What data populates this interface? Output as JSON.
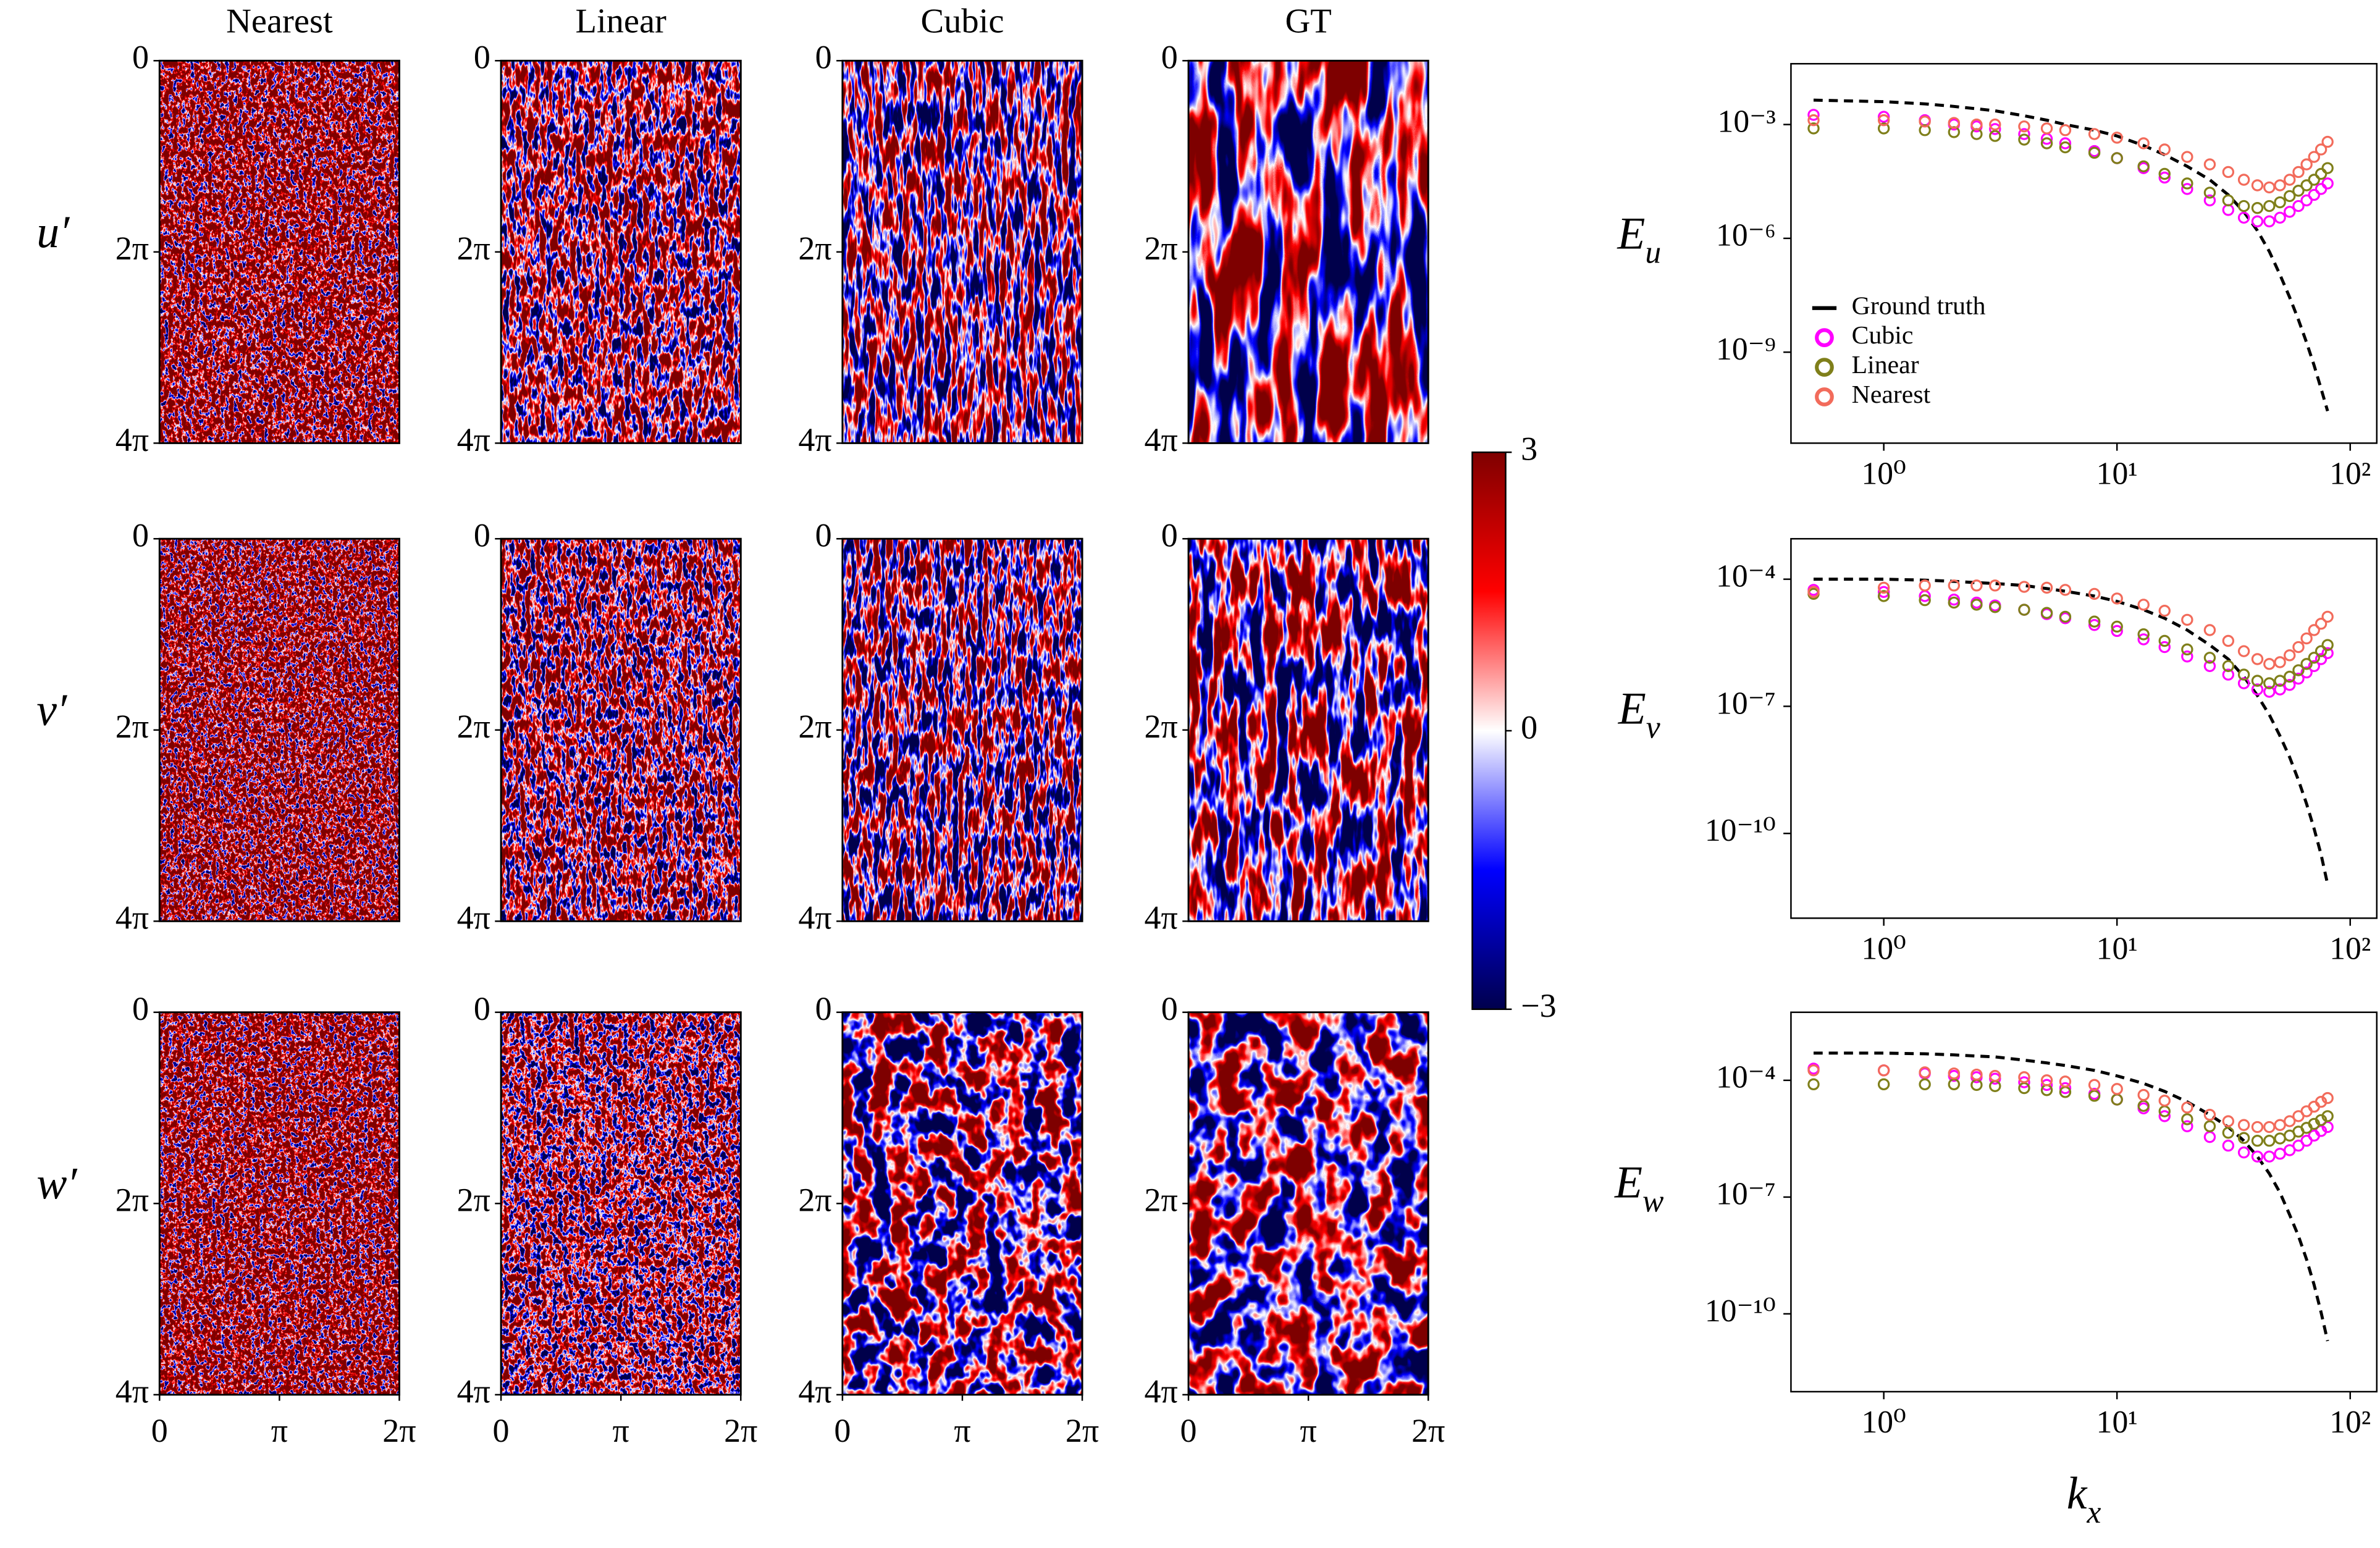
{
  "chart_data": [
    {
      "type": "heatmap",
      "columns": [
        "Nearest",
        "Linear",
        "Cubic",
        "GT"
      ],
      "rows": [
        "u′",
        "v′",
        "w′"
      ],
      "xlim": [
        0,
        6.2832
      ],
      "xticks": [
        0,
        {
          "value": 3.1416,
          "label": "π"
        },
        {
          "value": 6.2832,
          "label": "2π"
        }
      ],
      "ylim": [
        0,
        12.5664
      ],
      "yticks": [
        0,
        {
          "value": 6.2832,
          "label": "2π"
        },
        {
          "value": 12.5664,
          "label": "4π"
        }
      ],
      "y_inverted": true,
      "colormap": [
        "#00004c",
        "#0000ff",
        "#ffffff",
        "#ff0000",
        "#7f0000"
      ],
      "colorbar": {
        "lim": [
          -3,
          3
        ],
        "ticks": [
          {
            "value": -3,
            "label": "−3"
          },
          0,
          3
        ]
      }
    },
    {
      "type": "line",
      "xscale": "log",
      "yscale": "log",
      "ylabel": {
        "symbol": "E",
        "subscript": "u"
      },
      "x": [
        0.5,
        1,
        1.5,
        2,
        2.5,
        3,
        4,
        5,
        6,
        8,
        10,
        13,
        16,
        20,
        25,
        30,
        35,
        40,
        45,
        50,
        55,
        60,
        65,
        70,
        75,
        80
      ],
      "xlim": [
        0.4,
        130
      ],
      "xticks": [
        {
          "value": 1,
          "label": "10⁰"
        },
        {
          "value": 10,
          "label": "10¹"
        },
        {
          "value": 100,
          "label": "10²"
        }
      ],
      "ylim": [
        4e-12,
        0.04
      ],
      "yticks": [
        {
          "value": 0.001,
          "label": "10⁻³"
        },
        {
          "value": 1e-06,
          "label": "10⁻⁶"
        },
        {
          "value": 1e-09,
          "label": "10⁻⁹"
        }
      ],
      "legend": "lower left",
      "series": [
        {
          "name": "Ground truth",
          "color": "#000000",
          "style": "dashed",
          "values": [
            0.0044,
            0.004,
            0.0035,
            0.003,
            0.0026,
            0.0023,
            0.0017,
            0.0013,
            0.001,
            0.00071,
            0.0005,
            0.00028,
            0.00016,
            7.9e-05,
            3.5e-05,
            1.4e-05,
            5e-06,
            1.6e-06,
            4.5e-07,
            1.1e-07,
            2.8e-08,
            7.1e-09,
            1.8e-09,
            4.5e-10,
            1.1e-10,
            2.8e-11
          ]
        },
        {
          "name": "Cubic",
          "color": "#ff00ff",
          "style": "markers",
          "values": [
            0.0018,
            0.0016,
            0.0013,
            0.001,
            0.00089,
            0.00076,
            0.00056,
            0.00042,
            0.00032,
            0.0002,
            0.00013,
            7.1e-05,
            4e-05,
            2e-05,
            1e-05,
            5.6e-06,
            3.5e-06,
            2.8e-06,
            2.8e-06,
            3.5e-06,
            5e-06,
            7.1e-06,
            1e-05,
            1.4e-05,
            2e-05,
            2.8e-05
          ]
        },
        {
          "name": "Linear",
          "color": "#7f7f1a",
          "style": "markers",
          "values": [
            0.00079,
            0.00079,
            0.00071,
            0.00063,
            0.00056,
            0.0005,
            0.0004,
            0.00032,
            0.00025,
            0.00018,
            0.00013,
            7.9e-05,
            5e-05,
            2.8e-05,
            1.6e-05,
            1e-05,
            7.1e-06,
            6.3e-06,
            7.1e-06,
            8.9e-06,
            1.3e-05,
            1.8e-05,
            2.5e-05,
            3.5e-05,
            5e-05,
            7.1e-05
          ]
        },
        {
          "name": "Nearest",
          "color": "#f26b5b",
          "style": "markers",
          "values": [
            0.0013,
            0.0013,
            0.0012,
            0.0011,
            0.001,
            0.001,
            0.00089,
            0.00079,
            0.00071,
            0.00056,
            0.00045,
            0.00032,
            0.00022,
            0.00014,
            8.9e-05,
            5.6e-05,
            3.5e-05,
            2.5e-05,
            2.2e-05,
            2.5e-05,
            3.5e-05,
            5.6e-05,
            8.9e-05,
            0.00014,
            0.00022,
            0.00035
          ]
        }
      ]
    },
    {
      "type": "line",
      "xscale": "log",
      "yscale": "log",
      "ylabel": {
        "symbol": "E",
        "subscript": "v"
      },
      "x": [
        0.5,
        1,
        1.5,
        2,
        2.5,
        3,
        4,
        5,
        6,
        8,
        10,
        13,
        16,
        20,
        25,
        30,
        35,
        40,
        45,
        50,
        55,
        60,
        65,
        70,
        75,
        80
      ],
      "xlim": [
        0.4,
        130
      ],
      "xticks": [
        {
          "value": 1,
          "label": "10⁰"
        },
        {
          "value": 10,
          "label": "10¹"
        },
        {
          "value": 100,
          "label": "10²"
        }
      ],
      "ylim": [
        1e-12,
        0.0009
      ],
      "yticks": [
        {
          "value": 0.0001,
          "label": "10⁻⁴"
        },
        {
          "value": 1e-07,
          "label": "10⁻⁷"
        },
        {
          "value": 1e-10,
          "label": "10⁻¹⁰"
        }
      ],
      "series": [
        {
          "name": "Ground truth",
          "color": "#000000",
          "style": "dashed",
          "values": [
            0.0001,
            0.0001,
            9.5e-05,
            8.9e-05,
            8.3e-05,
            7.9e-05,
            7.1e-05,
            6e-05,
            5.2e-05,
            4e-05,
            3e-05,
            1.9e-05,
            1.2e-05,
            6.3e-06,
            2.8e-06,
            1.3e-06,
            5e-07,
            1.8e-07,
            6.3e-08,
            2e-08,
            6.3e-09,
            1.8e-09,
            5e-10,
            1.3e-10,
            3.2e-11,
            6.3e-12
          ]
        },
        {
          "name": "Cubic",
          "color": "#ff00ff",
          "style": "markers",
          "values": [
            5.6e-05,
            5e-05,
            4e-05,
            3.3e-05,
            2.8e-05,
            2.4e-05,
            1.9e-05,
            1.5e-05,
            1.2e-05,
            8.3e-06,
            6e-06,
            3.8e-06,
            2.5e-06,
            1.5e-06,
            8.9e-07,
            5.6e-07,
            3.5e-07,
            2.5e-07,
            2.2e-07,
            2.5e-07,
            3.2e-07,
            4.5e-07,
            6.3e-07,
            8.9e-07,
            1.3e-06,
            1.8e-06
          ]
        },
        {
          "name": "Linear",
          "color": "#7f7f1a",
          "style": "markers",
          "values": [
            4.5e-05,
            4e-05,
            3.2e-05,
            2.8e-05,
            2.5e-05,
            2.2e-05,
            1.9e-05,
            1.6e-05,
            1.3e-05,
            1e-05,
            7.6e-06,
            5e-06,
            3.5e-06,
            2.2e-06,
            1.4e-06,
            8.9e-07,
            5.6e-07,
            4e-07,
            3.5e-07,
            4e-07,
            5e-07,
            7.1e-07,
            1e-06,
            1.4e-06,
            2e-06,
            2.8e-06
          ]
        },
        {
          "name": "Nearest",
          "color": "#f26b5b",
          "style": "markers",
          "values": [
            5e-05,
            6.3e-05,
            7.1e-05,
            7.1e-05,
            7.1e-05,
            7.1e-05,
            6.6e-05,
            6.3e-05,
            5.6e-05,
            4.5e-05,
            3.5e-05,
            2.5e-05,
            1.8e-05,
            1.1e-05,
            6.3e-06,
            3.5e-06,
            2e-06,
            1.3e-06,
            1e-06,
            1.1e-06,
            1.6e-06,
            2.5e-06,
            4e-06,
            6.3e-06,
            8.9e-06,
            1.3e-05
          ]
        }
      ]
    },
    {
      "type": "line",
      "xscale": "log",
      "yscale": "log",
      "ylabel": {
        "symbol": "E",
        "subscript": "w"
      },
      "xlabel": {
        "symbol": "k",
        "subscript": "x"
      },
      "x": [
        0.5,
        1,
        1.5,
        2,
        2.5,
        3,
        4,
        5,
        6,
        8,
        10,
        13,
        16,
        20,
        25,
        30,
        35,
        40,
        45,
        50,
        55,
        60,
        65,
        70,
        75,
        80
      ],
      "xlim": [
        0.4,
        130
      ],
      "xticks": [
        {
          "value": 1,
          "label": "10⁰"
        },
        {
          "value": 10,
          "label": "10¹"
        },
        {
          "value": 100,
          "label": "10²"
        }
      ],
      "ylim": [
        1e-12,
        0.0056
      ],
      "yticks": [
        {
          "value": 0.0001,
          "label": "10⁻⁴"
        },
        {
          "value": 1e-07,
          "label": "10⁻⁷"
        },
        {
          "value": 1e-10,
          "label": "10⁻¹⁰"
        }
      ],
      "series": [
        {
          "name": "Ground truth",
          "color": "#000000",
          "style": "dashed",
          "values": [
            0.0005,
            0.0005,
            0.00048,
            0.00045,
            0.00042,
            0.0004,
            0.00033,
            0.00028,
            0.00024,
            0.00018,
            0.00013,
            8.3e-05,
            5.2e-05,
            2.8e-05,
            1.3e-05,
            6.3e-06,
            2.8e-06,
            1.1e-06,
            4e-07,
            1.3e-07,
            3.5e-08,
            1e-08,
            2.5e-09,
            5.6e-10,
            1.1e-10,
            2e-11
          ]
        },
        {
          "name": "Cubic",
          "color": "#ff00ff",
          "style": "markers",
          "values": [
            0.0002,
            0.00018,
            0.00015,
            0.00013,
            0.00012,
            0.00011,
            8.9e-05,
            7.6e-05,
            6.3e-05,
            4.5e-05,
            3.2e-05,
            1.9e-05,
            1.2e-05,
            6.6e-06,
            3.5e-06,
            2.1e-06,
            1.4e-06,
            1.1e-06,
            1.1e-06,
            1.3e-06,
            1.6e-06,
            2.1e-06,
            2.8e-06,
            3.8e-06,
            5e-06,
            6.3e-06
          ]
        },
        {
          "name": "Linear",
          "color": "#7f7f1a",
          "style": "markers",
          "values": [
            7.9e-05,
            7.9e-05,
            7.9e-05,
            7.9e-05,
            7.6e-05,
            7.1e-05,
            6.3e-05,
            5.6e-05,
            5e-05,
            4e-05,
            3.2e-05,
            2.2e-05,
            1.6e-05,
            1e-05,
            6.6e-06,
            4.5e-06,
            3.3e-06,
            2.8e-06,
            2.8e-06,
            3.2e-06,
            3.8e-06,
            4.8e-06,
            6e-06,
            7.6e-06,
            9.5e-06,
            1.2e-05
          ]
        },
        {
          "name": "Nearest",
          "color": "#f26b5b",
          "style": "markers",
          "values": [
            0.00018,
            0.00018,
            0.00016,
            0.00015,
            0.00014,
            0.00013,
            0.00012,
            0.0001,
            9.3e-05,
            7.6e-05,
            6e-05,
            4.2e-05,
            3e-05,
            2e-05,
            1.3e-05,
            8.9e-06,
            7.1e-06,
            6.3e-06,
            6.3e-06,
            7.1e-06,
            8.9e-06,
            1.2e-05,
            1.6e-05,
            2.1e-05,
            2.8e-05,
            3.5e-05
          ]
        }
      ]
    }
  ]
}
